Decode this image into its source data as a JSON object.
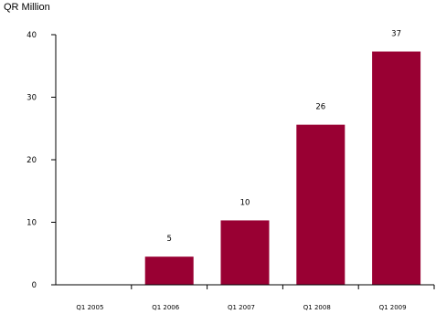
{
  "chart_data": {
    "type": "bar",
    "ylabel": "QR Million",
    "categories": [
      "Q1 2005",
      "Q1 2006",
      "Q1 2007",
      "Q1 2008",
      "Q1 2009"
    ],
    "values": [
      0,
      4.5,
      10.3,
      25.6,
      37.3
    ],
    "data_labels": [
      "",
      "5",
      "10",
      "26",
      "37"
    ],
    "ylim": [
      0,
      40
    ],
    "yticks": [
      "0",
      "10",
      "20",
      "30",
      "40"
    ],
    "ytick_values": [
      0,
      10,
      20,
      30,
      40
    ],
    "grid": false,
    "bar_color": "#990033",
    "legend": "none"
  }
}
